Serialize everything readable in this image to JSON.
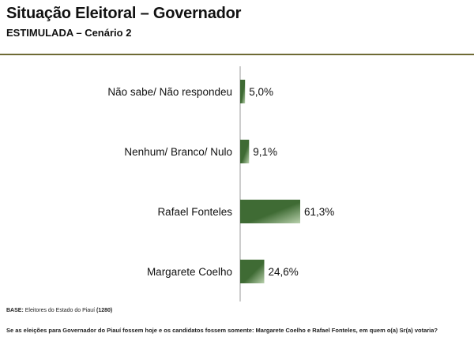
{
  "title": "Situação Eleitoral – Governador",
  "subtitle": "ESTIMULADA – Cenário 2",
  "colors": {
    "rule": "#6e6a34",
    "bar_dark": "#3f6b34",
    "bar_light": "#b9d1ad"
  },
  "footer": {
    "base_label": "BASE:",
    "base_text": "Eleitores do Estado do Piauí",
    "base_count": "(1280)",
    "question": "Se as eleições para Governador do Piauí fossem hoje e os candidatos fossem somente: Margarete Coelho e Rafael Fonteles, em quem o(a) Sr(a) votaria?"
  },
  "chart_data": {
    "type": "bar",
    "orientation": "horizontal",
    "categories": [
      "Não sabe/ Não respondeu",
      "Nenhum/ Branco/ Nulo",
      "Rafael Fonteles",
      "Margarete Coelho"
    ],
    "values": [
      5.0,
      9.1,
      61.3,
      24.6
    ],
    "value_labels": [
      "5,0%",
      "9,1%",
      "61,3%",
      "24,6%"
    ],
    "unit": "%",
    "xlim": [
      0,
      100
    ],
    "grid": false,
    "legend": "none"
  }
}
